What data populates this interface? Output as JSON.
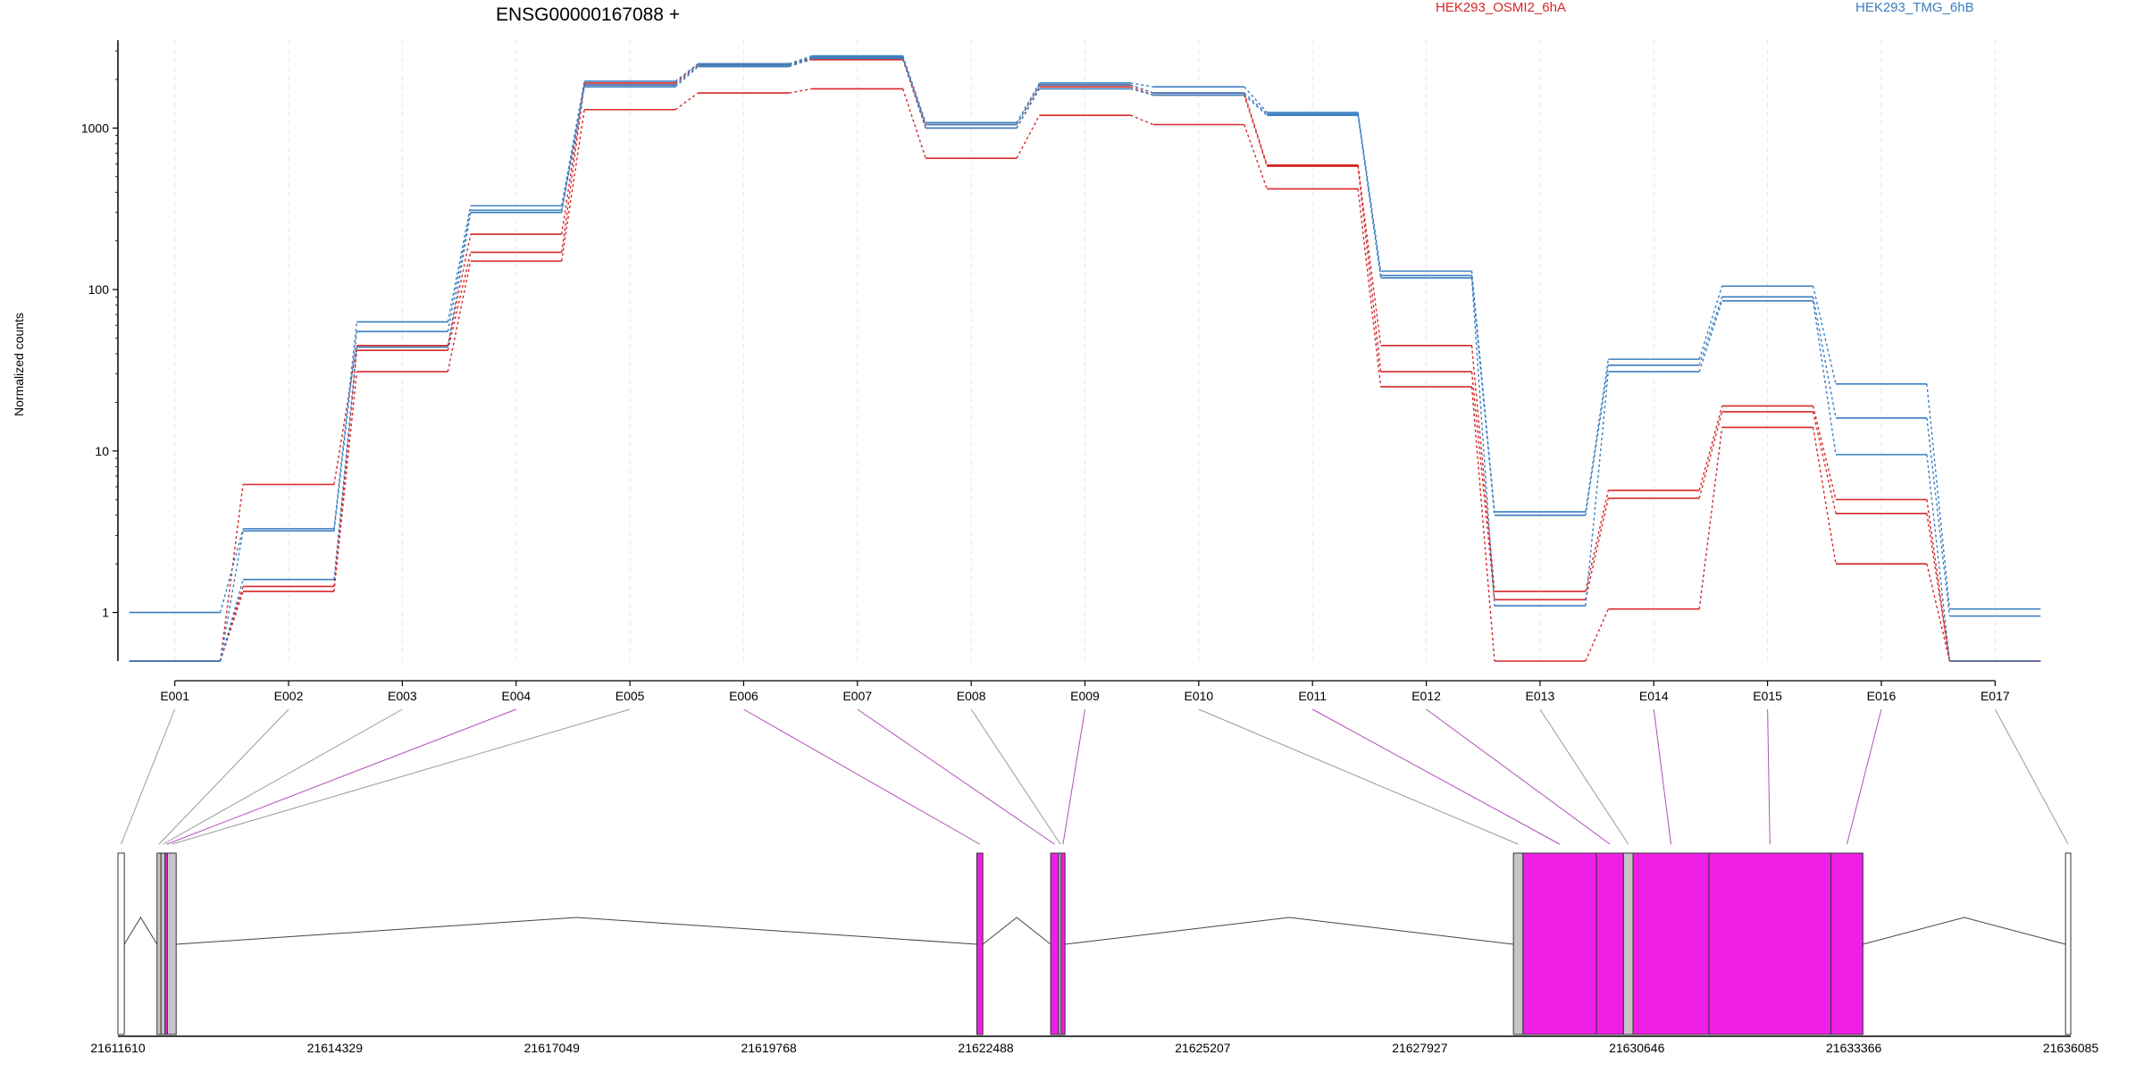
{
  "chart_data": {
    "type": "line",
    "title": "ENSG00000167088 +",
    "ylabel": "Normalized counts",
    "xlabel": "",
    "yscale": "log",
    "ylim": [
      0.5,
      3500
    ],
    "yticks": [
      "1",
      "10",
      "100",
      "1000"
    ],
    "grid": "vertical dashed at exon centers",
    "legend_position": "top",
    "categories": [
      "E001",
      "E002",
      "E003",
      "E004",
      "E005",
      "E006",
      "E007",
      "E008",
      "E009",
      "E010",
      "E011",
      "E012",
      "E013",
      "E014",
      "E015",
      "E016",
      "E017"
    ],
    "colors": {
      "HEK293_OSMI2_6hA": "#d62728",
      "HEK293_TMG_6hB": "#3a7ebf"
    },
    "legend": [
      {
        "name": "HEK293_OSMI2_6hA",
        "color": "#d62728"
      },
      {
        "name": "HEK293_TMG_6hB",
        "color": "#3a7ebf"
      }
    ],
    "series": [
      {
        "group": "HEK293_OSMI2_6hA",
        "values": [
          0.5,
          6.2,
          45,
          220,
          1900,
          2500,
          2700,
          1050,
          1850,
          1650,
          590,
          45,
          1.35,
          5.7,
          19,
          5.0,
          0.5
        ]
      },
      {
        "group": "HEK293_OSMI2_6hA",
        "values": [
          0.5,
          1.45,
          42,
          170,
          1850,
          2450,
          2650,
          1000,
          1800,
          1600,
          580,
          31,
          1.2,
          5.1,
          17.5,
          4.1,
          0.5
        ]
      },
      {
        "group": "HEK293_OSMI2_6hA",
        "values": [
          0.5,
          1.35,
          31,
          150,
          1300,
          1650,
          1750,
          650,
          1200,
          1050,
          420,
          25,
          0.5,
          1.05,
          14,
          2.0,
          0.5
        ]
      },
      {
        "group": "HEK293_TMG_6hB",
        "values": [
          1.0,
          3.3,
          63,
          330,
          1950,
          2500,
          2800,
          1080,
          1900,
          1800,
          1250,
          130,
          4.2,
          37,
          105,
          26,
          1.05
        ]
      },
      {
        "group": "HEK293_TMG_6hB",
        "values": [
          0.5,
          3.2,
          55,
          310,
          1850,
          2450,
          2750,
          1050,
          1850,
          1650,
          1220,
          122,
          4.0,
          34,
          90,
          16,
          0.95
        ]
      },
      {
        "group": "HEK293_TMG_6hB",
        "values": [
          0.5,
          1.6,
          44,
          300,
          1800,
          2400,
          2700,
          1000,
          1750,
          1600,
          1200,
          118,
          1.1,
          31,
          85,
          9.5,
          0.5
        ]
      }
    ],
    "genome_axis": {
      "range": [
        21611610,
        21636085
      ],
      "tick_labels": [
        "21611610",
        "21614329",
        "21617049",
        "21619768",
        "21622488",
        "21625207",
        "21627927",
        "21630646",
        "21633366",
        "21636085"
      ]
    },
    "exons": [
      {
        "id": "E001",
        "start": 21611610,
        "end": 21611690,
        "type": "noncoding"
      },
      {
        "id": "E002",
        "start": 21612100,
        "end": 21612150,
        "type": "noncoding"
      },
      {
        "id": "E003",
        "start": 21612150,
        "end": 21612200,
        "type": "noncoding"
      },
      {
        "id": "E004",
        "start": 21612200,
        "end": 21612230,
        "type": "coding"
      },
      {
        "id": "E005",
        "start": 21612230,
        "end": 21612340,
        "type": "noncoding"
      },
      {
        "id": "E006",
        "start": 21622375,
        "end": 21622450,
        "type": "coding"
      },
      {
        "id": "E007",
        "start": 21623300,
        "end": 21623400,
        "type": "coding"
      },
      {
        "id": "E008",
        "start": 21623400,
        "end": 21623430,
        "type": "noncoding"
      },
      {
        "id": "E009",
        "start": 21623430,
        "end": 21623480,
        "type": "coding"
      },
      {
        "id": "E010",
        "start": 21629100,
        "end": 21629220,
        "type": "noncoding"
      },
      {
        "id": "E011",
        "start": 21629220,
        "end": 21630140,
        "type": "coding"
      },
      {
        "id": "E012",
        "start": 21630140,
        "end": 21630480,
        "type": "coding"
      },
      {
        "id": "E013",
        "start": 21630480,
        "end": 21630600,
        "type": "noncoding"
      },
      {
        "id": "E014",
        "start": 21630600,
        "end": 21631550,
        "type": "coding"
      },
      {
        "id": "E015",
        "start": 21631550,
        "end": 21633080,
        "type": "coding"
      },
      {
        "id": "E016",
        "start": 21633080,
        "end": 21633480,
        "type": "coding"
      },
      {
        "id": "E017",
        "start": 21636020,
        "end": 21636085,
        "type": "noncoding"
      }
    ]
  }
}
